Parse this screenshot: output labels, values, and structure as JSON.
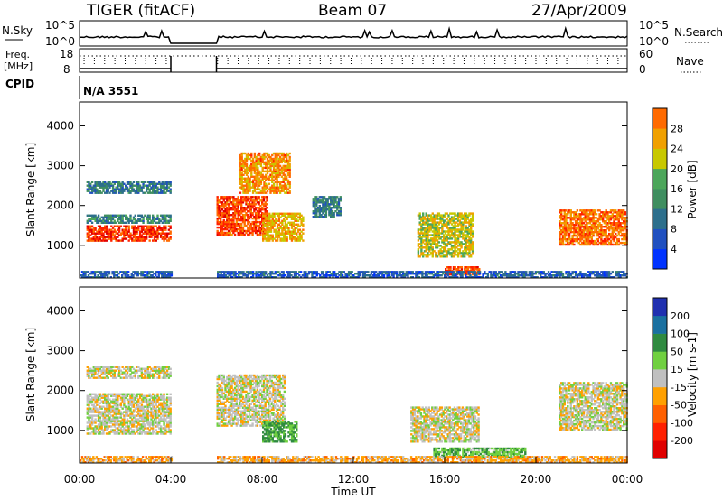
{
  "header": {
    "title": "TIGER (fitACF)",
    "beam": "Beam 07",
    "date": "27/Apr/2009"
  },
  "nsky_panel": {
    "left_label": "N.Sky",
    "right_label": "N.Search",
    "left_ticks": [
      "10^5",
      "10^0"
    ],
    "right_ticks": [
      "10^5",
      "10^0"
    ]
  },
  "freq_panel": {
    "left_label_line1": "Freq.",
    "left_label_line2": "[MHz]",
    "right_label": "Nave",
    "left_ticks": [
      "18",
      "8"
    ],
    "right_ticks": [
      "60",
      "0"
    ]
  },
  "cpid": {
    "label": "CPID",
    "value": "N/A 3551"
  },
  "colors": {
    "power": [
      "#0033ff",
      "#2050c0",
      "#2d6f8c",
      "#3f8e60",
      "#4ca65a",
      "#c8c800",
      "#f0a000",
      "#ff6a00",
      "#ff2000",
      "#e00000"
    ],
    "velocity": [
      "#2030b0",
      "#1a70a0",
      "#2f8a40",
      "#70d040",
      "#c0c0c0",
      "#ffa000",
      "#ff6000",
      "#ff2000",
      "#e00000"
    ]
  },
  "chart_data": [
    {
      "type": "heatmap",
      "name": "power",
      "xlabel": "",
      "ylabel": "Slant Range [km]",
      "xlim": [
        "00:00",
        "24:00"
      ],
      "ylim": [
        180,
        4600
      ],
      "y_ticks": [
        "1000",
        "2000",
        "3000",
        "4000"
      ],
      "colorbar": {
        "label": "Power [dB]",
        "ticks": [
          "4",
          "8",
          "12",
          "16",
          "20",
          "24",
          "28"
        ],
        "range": [
          0,
          32
        ]
      },
      "data_gaps": [
        [
          "04:00",
          "06:00"
        ]
      ],
      "regions": [
        {
          "t": [
            0.3,
            4.0
          ],
          "range": [
            1100,
            1500
          ],
          "level": 27
        },
        {
          "t": [
            0.3,
            4.0
          ],
          "range": [
            1550,
            1750
          ],
          "level": 10
        },
        {
          "t": [
            0.3,
            4.0
          ],
          "range": [
            2300,
            2600
          ],
          "level": 9
        },
        {
          "t": [
            6.0,
            8.2
          ],
          "range": [
            1250,
            2200
          ],
          "level": 26
        },
        {
          "t": [
            7.0,
            9.2
          ],
          "range": [
            2300,
            3300
          ],
          "level": 22
        },
        {
          "t": [
            8.0,
            9.8
          ],
          "range": [
            1100,
            1800
          ],
          "level": 20
        },
        {
          "t": [
            10.2,
            11.4
          ],
          "range": [
            1700,
            2200
          ],
          "level": 9
        },
        {
          "t": [
            14.8,
            17.2
          ],
          "range": [
            700,
            1800
          ],
          "level": 18
        },
        {
          "t": [
            16.0,
            17.5
          ],
          "range": [
            250,
            450
          ],
          "level": 26
        },
        {
          "t": [
            0.0,
            24.0
          ],
          "range": [
            180,
            350
          ],
          "level": 6
        },
        {
          "t": [
            21.0,
            24.0
          ],
          "range": [
            1000,
            1900
          ],
          "level": 24
        }
      ]
    },
    {
      "type": "heatmap",
      "name": "velocity",
      "xlabel": "Time UT",
      "ylabel": "Slant Range [km]",
      "xlim": [
        "00:00",
        "24:00"
      ],
      "ylim": [
        180,
        4600
      ],
      "x_ticks": [
        "00:00",
        "04:00",
        "08:00",
        "12:00",
        "16:00",
        "20:00",
        "00:00"
      ],
      "y_ticks": [
        "1000",
        "2000",
        "3000",
        "4000"
      ],
      "colorbar": {
        "label": "Velocity [m s-1]",
        "ticks": [
          "200",
          "100",
          "50",
          "15",
          "-15",
          "-50",
          "-100",
          "-200"
        ]
      },
      "data_gaps": [
        [
          "04:00",
          "06:00"
        ]
      ],
      "regions": [
        {
          "t": [
            0.3,
            4.0
          ],
          "range": [
            900,
            1900
          ],
          "velocity": 0
        },
        {
          "t": [
            0.3,
            4.0
          ],
          "range": [
            2300,
            2600
          ],
          "velocity": 0
        },
        {
          "t": [
            6.0,
            9.0
          ],
          "range": [
            1100,
            2400
          ],
          "velocity": 0
        },
        {
          "t": [
            8.0,
            9.5
          ],
          "range": [
            700,
            1200
          ],
          "velocity": 60
        },
        {
          "t": [
            14.5,
            17.5
          ],
          "range": [
            700,
            1600
          ],
          "velocity": 0
        },
        {
          "t": [
            15.5,
            19.5
          ],
          "range": [
            300,
            550
          ],
          "velocity": 40
        },
        {
          "t": [
            0.0,
            24.0
          ],
          "range": [
            180,
            350
          ],
          "velocity": -30
        },
        {
          "t": [
            21.0,
            24.0
          ],
          "range": [
            1000,
            2200
          ],
          "velocity": 0
        }
      ]
    }
  ]
}
